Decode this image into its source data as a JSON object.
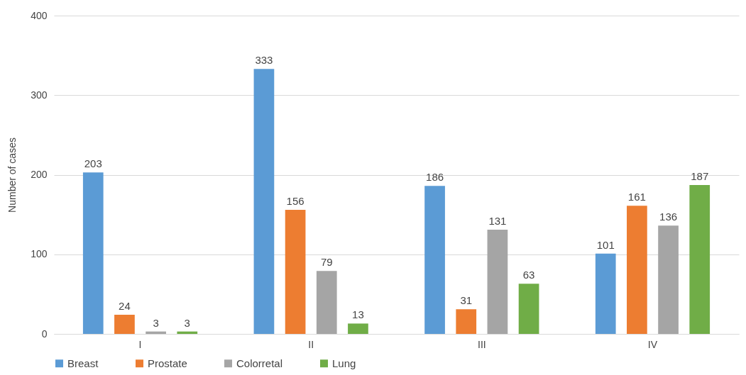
{
  "chart_data": {
    "type": "bar",
    "ylabel": "Number of cases",
    "categories": [
      "I",
      "II",
      "III",
      "IV"
    ],
    "series": [
      {
        "name": "Breast",
        "color": "#5b9bd5",
        "values": [
          203,
          333,
          186,
          101
        ]
      },
      {
        "name": "Prostate",
        "color": "#ed7d31",
        "values": [
          24,
          156,
          31,
          161
        ]
      },
      {
        "name": "Colorretal",
        "color": "#a5a5a5",
        "values": [
          3,
          79,
          131,
          136
        ]
      },
      {
        "name": "Lung",
        "color": "#70ad47",
        "values": [
          3,
          13,
          63,
          187
        ]
      }
    ],
    "ylim": [
      0,
      400
    ],
    "yticks": [
      0,
      100,
      200,
      300,
      400
    ],
    "grid": "y",
    "legend": "bottom",
    "data_labels": true
  }
}
